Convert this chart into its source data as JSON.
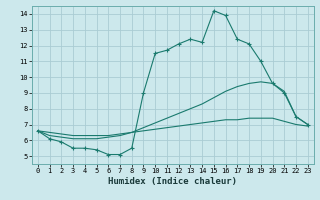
{
  "xlabel": "Humidex (Indice chaleur)",
  "background_color": "#cce8ec",
  "grid_color": "#aaccd4",
  "line_color": "#1a7a6e",
  "xlim": [
    -0.5,
    23.5
  ],
  "ylim": [
    4.5,
    14.5
  ],
  "xticks": [
    0,
    1,
    2,
    3,
    4,
    5,
    6,
    7,
    8,
    9,
    10,
    11,
    12,
    13,
    14,
    15,
    16,
    17,
    18,
    19,
    20,
    21,
    22,
    23
  ],
  "yticks": [
    5,
    6,
    7,
    8,
    9,
    10,
    11,
    12,
    13,
    14
  ],
  "line1_x": [
    0,
    1,
    2,
    3,
    4,
    5,
    6,
    7,
    8,
    9,
    10,
    11,
    12,
    13,
    14,
    15,
    16,
    17,
    18,
    19,
    20,
    21,
    22,
    23
  ],
  "line1_y": [
    6.6,
    6.1,
    5.9,
    5.5,
    5.5,
    5.4,
    5.1,
    5.1,
    5.5,
    9.0,
    11.5,
    11.7,
    12.1,
    12.4,
    12.2,
    14.2,
    13.9,
    12.4,
    12.1,
    11.0,
    9.6,
    9.0,
    7.5,
    7.0
  ],
  "line2_x": [
    0,
    1,
    2,
    3,
    4,
    5,
    6,
    7,
    8,
    9,
    10,
    11,
    12,
    13,
    14,
    15,
    16,
    17,
    18,
    19,
    20,
    21,
    22,
    23
  ],
  "line2_y": [
    6.6,
    6.3,
    6.2,
    6.1,
    6.1,
    6.1,
    6.2,
    6.3,
    6.5,
    6.8,
    7.1,
    7.4,
    7.7,
    8.0,
    8.3,
    8.7,
    9.1,
    9.4,
    9.6,
    9.7,
    9.6,
    9.1,
    7.5,
    7.0
  ],
  "line3_x": [
    0,
    1,
    2,
    3,
    4,
    5,
    6,
    7,
    8,
    9,
    10,
    11,
    12,
    13,
    14,
    15,
    16,
    17,
    18,
    19,
    20,
    21,
    22,
    23
  ],
  "line3_y": [
    6.6,
    6.5,
    6.4,
    6.3,
    6.3,
    6.3,
    6.3,
    6.4,
    6.5,
    6.6,
    6.7,
    6.8,
    6.9,
    7.0,
    7.1,
    7.2,
    7.3,
    7.3,
    7.4,
    7.4,
    7.4,
    7.2,
    7.0,
    6.9
  ],
  "tick_fontsize": 5,
  "xlabel_fontsize": 6.5
}
